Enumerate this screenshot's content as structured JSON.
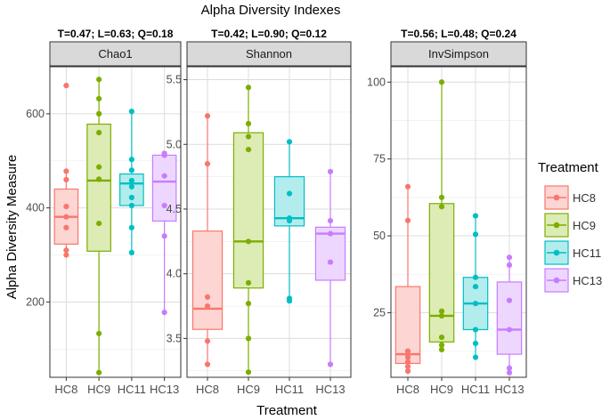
{
  "chart_data": {
    "type": "boxplot",
    "title": "Alpha Diversity Indexes",
    "xlabel": "Treatment",
    "ylabel": "Alpha Diversity Measure",
    "categories": [
      "HC8",
      "HC9",
      "HC11",
      "HC13"
    ],
    "colors": {
      "HC8": {
        "line": "#F8766D",
        "fill": "#FDD5D2"
      },
      "HC9": {
        "line": "#7CAE00",
        "fill": "#DDEBB5"
      },
      "HC11": {
        "line": "#00BFC4",
        "fill": "#B3ECED"
      },
      "HC13": {
        "line": "#C77CFF",
        "fill": "#EDD7FF"
      }
    },
    "legend": {
      "title": "Treatment",
      "position": "right",
      "entries": [
        "HC8",
        "HC9",
        "HC11",
        "HC13"
      ]
    },
    "panels": [
      {
        "name": "Chao1",
        "stats": "T=0.47; L=0.63; Q=0.18",
        "ylim": [
          40,
          700
        ],
        "ticks": [
          200,
          400,
          600
        ],
        "boxes": {
          "HC8": {
            "min": 300,
            "q1": 323,
            "median": 381,
            "q3": 440,
            "max": 478
          },
          "HC9": {
            "min": 50,
            "q1": 308,
            "median": 458,
            "q3": 578,
            "max": 673
          },
          "HC11": {
            "min": 305,
            "q1": 405,
            "median": 452,
            "q3": 472,
            "max": 605
          },
          "HC13": {
            "min": 178,
            "q1": 372,
            "median": 456,
            "q3": 512,
            "max": 516
          }
        },
        "points": {
          "HC8": [
            660,
            478,
            460,
            403,
            381,
            358,
            310,
            300
          ],
          "HC9": [
            673,
            632,
            600,
            560,
            487,
            461,
            367,
            133,
            50
          ],
          "HC11": [
            605,
            503,
            480,
            458,
            445,
            422,
            405,
            358,
            305
          ],
          "HC13": [
            516,
            512,
            468,
            405,
            340,
            178
          ]
        }
      },
      {
        "name": "Shannon",
        "stats": "T=0.42; L=0.90; Q=0.12",
        "ylim": [
          3.2,
          5.6
        ],
        "ticks": [
          3.5,
          4.0,
          4.5,
          5.0,
          5.5
        ],
        "boxes": {
          "HC8": {
            "min": 3.3,
            "q1": 3.57,
            "median": 3.73,
            "q3": 4.33,
            "max": 5.22
          },
          "HC9": {
            "min": 3.24,
            "q1": 3.89,
            "median": 4.25,
            "q3": 5.09,
            "max": 5.44
          },
          "HC11": {
            "min": 3.79,
            "q1": 4.37,
            "median": 4.43,
            "q3": 4.75,
            "max": 5.02
          },
          "HC13": {
            "min": 3.3,
            "q1": 3.95,
            "median": 4.31,
            "q3": 4.36,
            "max": 4.79
          }
        },
        "points": {
          "HC8": [
            5.22,
            4.85,
            3.82,
            3.75,
            3.48,
            3.3
          ],
          "HC9": [
            5.44,
            5.16,
            5.06,
            4.96,
            4.25,
            3.93,
            3.77,
            3.5,
            3.24
          ],
          "HC11": [
            5.02,
            4.62,
            4.43,
            4.41,
            3.81,
            3.79
          ],
          "HC13": [
            4.79,
            4.41,
            4.31,
            4.09,
            3.3
          ]
        }
      },
      {
        "name": "InvSimpson",
        "stats": "T=0.56; L=0.48; Q=0.24",
        "ylim": [
          4,
          105
        ],
        "ticks": [
          25,
          50,
          75,
          100
        ],
        "boxes": {
          "HC8": {
            "min": 6,
            "q1": 8.5,
            "median": 11.5,
            "q3": 33.5,
            "max": 66
          },
          "HC9": {
            "min": 13,
            "q1": 15.5,
            "median": 24,
            "q3": 60.5,
            "max": 100
          },
          "HC11": {
            "min": 10.5,
            "q1": 19.5,
            "median": 28,
            "q3": 36.5,
            "max": 56.5
          },
          "HC13": {
            "min": 5.5,
            "q1": 11.5,
            "median": 19.5,
            "q3": 35,
            "max": 43
          }
        },
        "points": {
          "HC8": [
            66,
            55,
            12.5,
            11.5,
            10.5,
            9,
            7.5,
            6
          ],
          "HC9": [
            100,
            62.5,
            59.5,
            25.5,
            24,
            17,
            14.5,
            13
          ],
          "HC11": [
            56.5,
            50.5,
            36.5,
            33.5,
            28,
            19.5,
            15,
            10.5
          ],
          "HC13": [
            43,
            40.5,
            29,
            19.5,
            7,
            5.5
          ]
        }
      }
    ]
  }
}
